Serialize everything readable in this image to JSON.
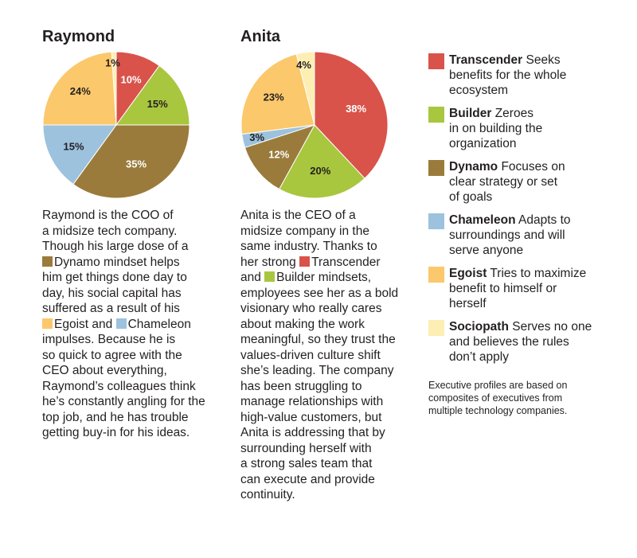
{
  "colors": {
    "Transcender": "#d9534a",
    "Builder": "#a9c63f",
    "Dynamo": "#9b7b3b",
    "Chameleon": "#9cc2de",
    "Egoist": "#fbc86b",
    "Sociopath": "#fdeeb3"
  },
  "chart_data": [
    {
      "type": "pie",
      "title": "Raymond",
      "slices": [
        {
          "label": "Transcender",
          "value": 10,
          "display": "10%"
        },
        {
          "label": "Builder",
          "value": 15,
          "display": "15%"
        },
        {
          "label": "Dynamo",
          "value": 35,
          "display": "35%"
        },
        {
          "label": "Chameleon",
          "value": 15,
          "display": "15%"
        },
        {
          "label": "Egoist",
          "value": 24,
          "display": "24%"
        },
        {
          "label": "Sociopath",
          "value": 1,
          "display": "1%"
        }
      ]
    },
    {
      "type": "pie",
      "title": "Anita",
      "slices": [
        {
          "label": "Transcender",
          "value": 38,
          "display": "38%"
        },
        {
          "label": "Builder",
          "value": 20,
          "display": "20%"
        },
        {
          "label": "Dynamo",
          "value": 12,
          "display": "12%"
        },
        {
          "label": "Chameleon",
          "value": 3,
          "display": "3%"
        },
        {
          "label": "Egoist",
          "value": 23,
          "display": "23%"
        },
        {
          "label": "Sociopath",
          "value": 4,
          "display": "4%"
        }
      ]
    }
  ],
  "raymond": {
    "lines": [
      [
        {
          "t": "Raymond is the COO of"
        }
      ],
      [
        {
          "t": "a midsize tech company."
        }
      ],
      [
        {
          "t": "Though his large dose of a"
        }
      ],
      [
        {
          "sw": "Dynamo"
        },
        {
          "t": "Dynamo mindset helps"
        }
      ],
      [
        {
          "t": "him get things done day to"
        }
      ],
      [
        {
          "t": "day, his social capital has"
        }
      ],
      [
        {
          "t": "suffered as a result of his"
        }
      ],
      [
        {
          "sw": "Egoist"
        },
        {
          "t": "Egoist and "
        },
        {
          "sw": "Chameleon"
        },
        {
          "t": "Chameleon"
        }
      ],
      [
        {
          "t": "impulses. Because he is"
        }
      ],
      [
        {
          "t": "so quick to agree with the"
        }
      ],
      [
        {
          "t": "CEO about everything,"
        }
      ],
      [
        {
          "t": "Raymond’s colleagues think"
        }
      ],
      [
        {
          "t": "he’s constantly angling for the"
        }
      ],
      [
        {
          "t": "top job, and he has trouble"
        }
      ],
      [
        {
          "t": "getting buy-in for his ideas."
        }
      ]
    ]
  },
  "anita": {
    "lines": [
      [
        {
          "t": "Anita is the CEO of a"
        }
      ],
      [
        {
          "t": "midsize company in the"
        }
      ],
      [
        {
          "t": "same industry. Thanks to"
        }
      ],
      [
        {
          "t": "her strong "
        },
        {
          "sw": "Transcender"
        },
        {
          "t": "Transcender"
        }
      ],
      [
        {
          "t": "and "
        },
        {
          "sw": "Builder"
        },
        {
          "t": "Builder mindsets,"
        }
      ],
      [
        {
          "t": "employees see her as a bold"
        }
      ],
      [
        {
          "t": "visionary who really cares"
        }
      ],
      [
        {
          "t": "about making the work"
        }
      ],
      [
        {
          "t": "meaningful, so they trust the"
        }
      ],
      [
        {
          "t": "values-driven culture shift"
        }
      ],
      [
        {
          "t": "she’s leading. The company"
        }
      ],
      [
        {
          "t": "has been struggling to"
        }
      ],
      [
        {
          "t": "manage relationships with"
        }
      ],
      [
        {
          "t": "high-value customers, but"
        }
      ],
      [
        {
          "t": "Anita is addressing that by"
        }
      ],
      [
        {
          "t": "surrounding herself with"
        }
      ],
      [
        {
          "t": "a strong sales team that"
        }
      ],
      [
        {
          "t": "can execute and provide"
        }
      ],
      [
        {
          "t": "continuity."
        }
      ]
    ]
  },
  "legend": [
    {
      "key": "Transcender",
      "term": "Transcender",
      "lines": [
        "Seeks",
        "benefits for the whole",
        "ecosystem"
      ]
    },
    {
      "key": "Builder",
      "term": "Builder",
      "lines": [
        "Zeroes",
        "in on building the",
        "organization"
      ]
    },
    {
      "key": "Dynamo",
      "term": "Dynamo",
      "lines": [
        "Focuses on",
        "clear strategy or set",
        "of goals"
      ]
    },
    {
      "key": "Chameleon",
      "term": "Chameleon",
      "lines": [
        "Adapts to",
        "surroundings and will",
        "serve anyone"
      ]
    },
    {
      "key": "Egoist",
      "term": "Egoist",
      "lines": [
        "Tries to maximize",
        "benefit to himself or",
        "herself"
      ]
    },
    {
      "key": "Sociopath",
      "term": "Sociopath",
      "lines": [
        "Serves no one",
        "and believes the rules",
        "don’t apply"
      ]
    }
  ],
  "footnote": [
    "Executive profiles are based on",
    "composites of executives from",
    "multiple technology companies."
  ]
}
